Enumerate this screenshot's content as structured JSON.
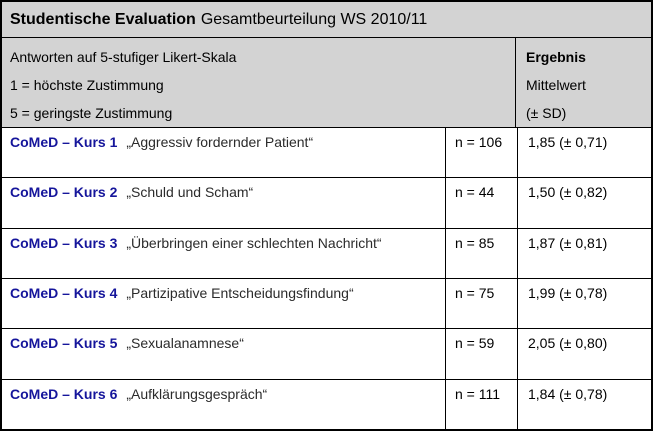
{
  "title": {
    "bold": "Studentische Evaluation",
    "regular": "Gesamtbeurteilung WS 2010/11"
  },
  "header": {
    "scale_line1": "Antworten auf 5-stufiger Likert-Skala",
    "scale_line2": "1 = höchste Zustimmung",
    "scale_line3": "5 = geringste Zustimmung",
    "result_title": "Ergebnis",
    "result_line2": "Mittelwert",
    "result_line3": "(± SD)"
  },
  "rows": [
    {
      "course": "CoMeD – Kurs 1",
      "topic": "„Aggressiv fordernder Patient“",
      "n": "n = 106",
      "result": "1,85 (± 0,71)"
    },
    {
      "course": "CoMeD – Kurs 2",
      "topic": "„Schuld und Scham“",
      "n": "n = 44",
      "result": "1,50 (± 0,82)"
    },
    {
      "course": "CoMeD – Kurs 3",
      "topic": "„Überbringen einer schlechten Nachricht“",
      "n": "n = 85",
      "result": "1,87 (± 0,81)"
    },
    {
      "course": "CoMeD – Kurs 4",
      "topic": "„Partizipative Entscheidungsfindung“",
      "n": "n = 75",
      "result": "1,99 (± 0,78)"
    },
    {
      "course": "CoMeD – Kurs 5",
      "topic": "„Sexualanamnese“",
      "n": "n = 59",
      "result": "2,05 (± 0,80)"
    },
    {
      "course": "CoMeD – Kurs 6",
      "topic": "„Aufklärungsgespräch“",
      "n": "n = 111",
      "result": "1,84 (± 0,78)"
    }
  ],
  "colors": {
    "header_bg": "#d3d3d3",
    "course_blue": "#15159b",
    "border": "#000000"
  }
}
